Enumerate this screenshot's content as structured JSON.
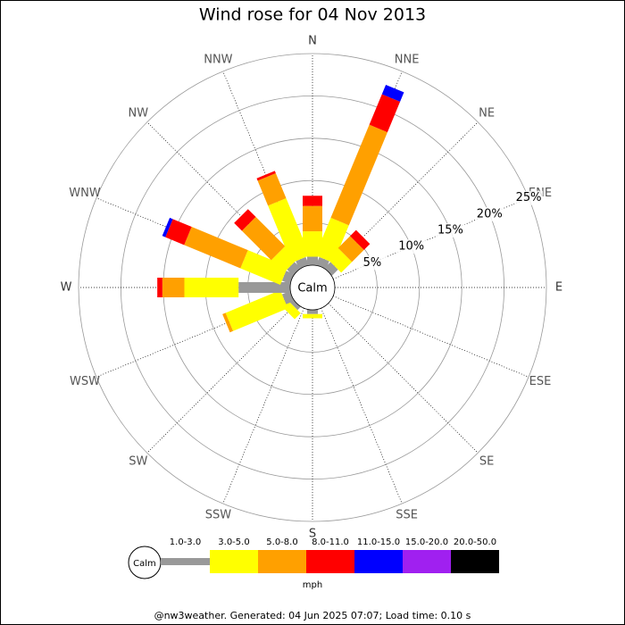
{
  "chart_data": {
    "type": "windrose",
    "title": "Wind rose for 04 Nov 2013",
    "categories": [
      "N",
      "NNE",
      "NE",
      "ENE",
      "E",
      "ESE",
      "SE",
      "SSE",
      "S",
      "SSW",
      "SW",
      "WSW",
      "W",
      "WNW",
      "NW",
      "NNW"
    ],
    "series": [
      {
        "name": "1.0-3.0",
        "color": "#999999",
        "values": [
          1.0,
          1.0,
          1.0,
          0,
          0,
          0,
          0,
          0,
          0.5,
          0,
          0.5,
          1.0,
          6.1,
          1.0,
          1.0,
          1.0
        ]
      },
      {
        "name": "3.0-5.0",
        "color": "#ffff00",
        "values": [
          3.0,
          4.8,
          1.8,
          0,
          0,
          0,
          0,
          0,
          0.5,
          0,
          1.0,
          7.0,
          6.4,
          5.1,
          2.1,
          7.3
        ]
      },
      {
        "name": "5.0-8.0",
        "color": "#ffa000",
        "values": [
          3.0,
          11.9,
          2.0,
          0,
          0,
          0,
          0,
          0,
          0,
          0,
          0,
          0.4,
          2.6,
          7.2,
          4.9,
          3.2
        ]
      },
      {
        "name": "8.0-11.0",
        "color": "#ff0000",
        "values": [
          1.2,
          3.9,
          1.0,
          0,
          0,
          0,
          0,
          0,
          0,
          0,
          0,
          0,
          0.6,
          2.4,
          1.3,
          0.3
        ]
      },
      {
        "name": "11.0-15.0",
        "color": "#0000ff",
        "values": [
          0,
          1.2,
          0,
          0,
          0,
          0,
          0,
          0,
          0,
          0,
          0,
          0,
          0,
          0.4,
          0,
          0
        ]
      },
      {
        "name": "15.0-20.0",
        "color": "#a020f0",
        "values": [
          0,
          0,
          0,
          0,
          0,
          0,
          0,
          0,
          0,
          0,
          0,
          0,
          0,
          0,
          0,
          0
        ]
      },
      {
        "name": "20.0-50.0",
        "color": "#000000",
        "values": [
          0,
          0,
          0,
          0,
          0,
          0,
          0,
          0,
          0,
          0,
          0,
          0,
          0,
          0,
          0,
          0
        ]
      }
    ],
    "rlim": [
      0,
      25
    ],
    "rticks": [
      {
        "value": 5,
        "label": "5%"
      },
      {
        "value": 10,
        "label": "10%"
      },
      {
        "value": 15,
        "label": "15%"
      },
      {
        "value": 20,
        "label": "20%"
      },
      {
        "value": 25,
        "label": "25%"
      }
    ],
    "calm_label": "Calm",
    "legend_unit": "mph",
    "footer": "@nw3weather. Generated: 04 Jun 2025 07:07; Load time: 0.10 s"
  }
}
